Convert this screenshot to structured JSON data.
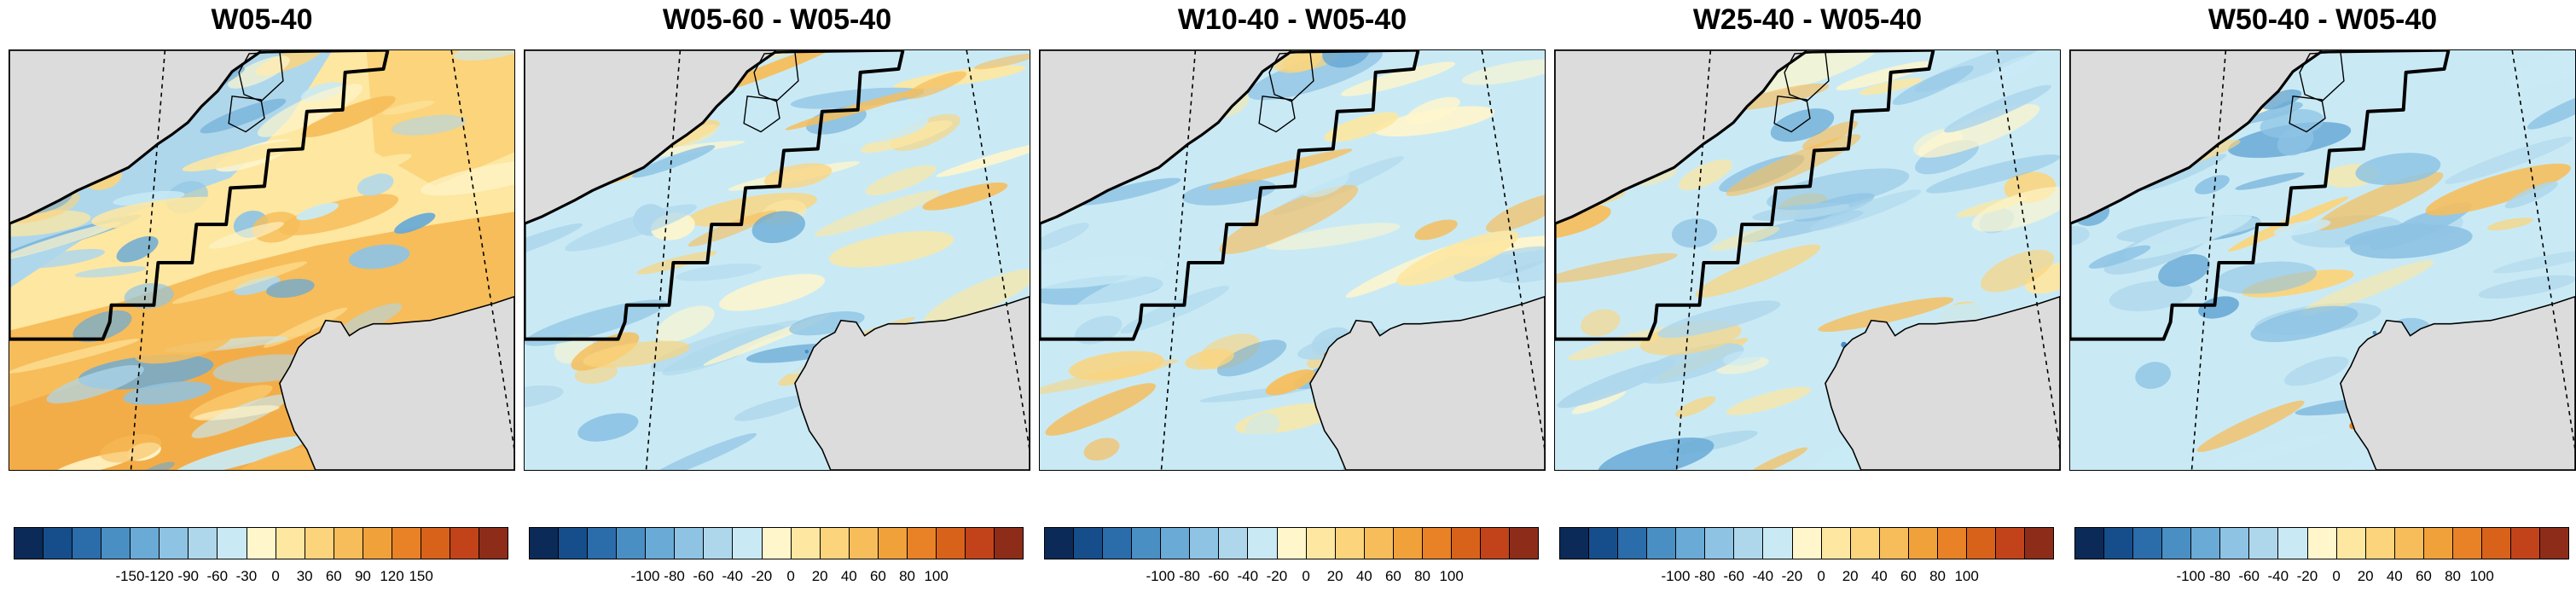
{
  "colorbar_colors": [
    "#0b2a57",
    "#164e8c",
    "#2b6cab",
    "#4a8fc4",
    "#6aaad6",
    "#8ec3e4",
    "#aed7ec",
    "#c9eaf5",
    "#fff6cc",
    "#fde7a1",
    "#fbd47c",
    "#f7bd5a",
    "#f1a13a",
    "#e98226",
    "#d9621a",
    "#c2431a",
    "#8e2c1a"
  ],
  "land_color": "#dcdcdc",
  "panels": [
    {
      "title": "W05-40",
      "ticks": [
        "-150",
        "-120",
        "-90",
        "-60",
        "-30",
        "0",
        "30",
        "60",
        "90",
        "120",
        "150"
      ],
      "dominant_sign": "positive"
    },
    {
      "title": "W05-60 - W05-40",
      "ticks": [
        "-100",
        "-80",
        "-60",
        "-40",
        "-20",
        "0",
        "20",
        "40",
        "60",
        "80",
        "100"
      ],
      "dominant_sign": "mixed"
    },
    {
      "title": "W10-40 - W05-40",
      "ticks": [
        "-100",
        "-80",
        "-60",
        "-40",
        "-20",
        "0",
        "20",
        "40",
        "60",
        "80",
        "100"
      ],
      "dominant_sign": "mixed"
    },
    {
      "title": "W25-40 - W05-40",
      "ticks": [
        "-100",
        "-80",
        "-60",
        "-40",
        "-20",
        "0",
        "20",
        "40",
        "60",
        "80",
        "100"
      ],
      "dominant_sign": "mixed"
    },
    {
      "title": "W50-40 - W05-40",
      "ticks": [
        "-100",
        "-80",
        "-60",
        "-40",
        "-20",
        "0",
        "20",
        "40",
        "60",
        "80",
        "100"
      ],
      "dominant_sign": "mixed-negative"
    }
  ]
}
